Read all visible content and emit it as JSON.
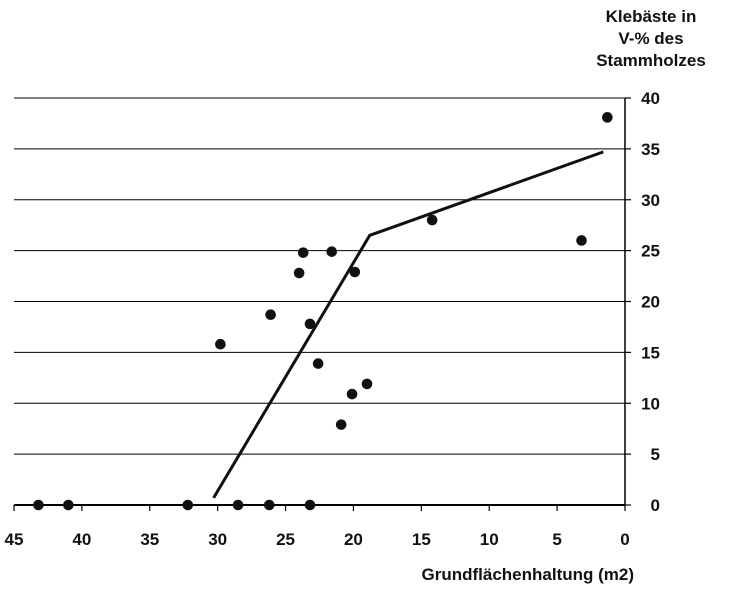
{
  "chart_data": {
    "type": "scatter",
    "title": "",
    "xlabel": "Grundflächenhaltung (m2)",
    "ylabel_lines": [
      "Klebäste in",
      "V-% des",
      "Stammholzes"
    ],
    "x_reversed": true,
    "xlim": [
      45,
      0
    ],
    "ylim": [
      0,
      40
    ],
    "x_ticks": [
      45,
      40,
      35,
      30,
      25,
      20,
      15,
      10,
      5,
      0
    ],
    "y_ticks": [
      0,
      5,
      10,
      15,
      20,
      25,
      30,
      35,
      40
    ],
    "y_axis_side": "right",
    "grid": "horizontal",
    "colors": {
      "marker": "#111111",
      "line": "#111111",
      "grid": "#000000"
    },
    "series": [
      {
        "type": "scatter",
        "points": [
          {
            "x": 43.2,
            "y": 0
          },
          {
            "x": 41.0,
            "y": 0
          },
          {
            "x": 32.2,
            "y": 0
          },
          {
            "x": 28.5,
            "y": 0
          },
          {
            "x": 26.2,
            "y": 0
          },
          {
            "x": 23.2,
            "y": 0
          },
          {
            "x": 29.8,
            "y": 15.8
          },
          {
            "x": 26.1,
            "y": 18.7
          },
          {
            "x": 24.0,
            "y": 22.8
          },
          {
            "x": 23.7,
            "y": 24.8
          },
          {
            "x": 21.6,
            "y": 24.9
          },
          {
            "x": 23.2,
            "y": 17.8
          },
          {
            "x": 22.6,
            "y": 13.9
          },
          {
            "x": 19.9,
            "y": 22.9
          },
          {
            "x": 20.1,
            "y": 10.9
          },
          {
            "x": 20.9,
            "y": 7.9
          },
          {
            "x": 19.0,
            "y": 11.9
          },
          {
            "x": 14.2,
            "y": 28.0
          },
          {
            "x": 3.2,
            "y": 26.0
          },
          {
            "x": 1.3,
            "y": 38.1
          }
        ]
      },
      {
        "type": "line",
        "points": [
          {
            "x": 30.3,
            "y": 0.7
          },
          {
            "x": 18.8,
            "y": 26.5
          },
          {
            "x": 1.6,
            "y": 34.7
          }
        ]
      }
    ]
  }
}
